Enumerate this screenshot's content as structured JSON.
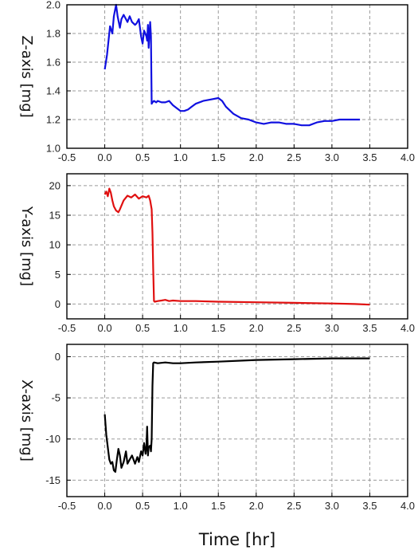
{
  "chart_data": [
    {
      "type": "line",
      "ylabel": "Z-axis [mg]",
      "xlim": [
        -0.5,
        4.0
      ],
      "ylim": [
        1.0,
        2.0
      ],
      "xticks": [
        "-0.5",
        "0.0",
        "0.5",
        "1.0",
        "1.5",
        "2.0",
        "2.5",
        "3.0",
        "3.5",
        "4.0"
      ],
      "yticks": [
        "1.0",
        "1.2",
        "1.4",
        "1.6",
        "1.8",
        "2.0"
      ],
      "grid": true,
      "color": "#1010e0",
      "series": [
        {
          "x": [
            0.0,
            0.03,
            0.05,
            0.07,
            0.1,
            0.12,
            0.15,
            0.17,
            0.2,
            0.22,
            0.25,
            0.28,
            0.3,
            0.33,
            0.36,
            0.4,
            0.42,
            0.45,
            0.48,
            0.5,
            0.52,
            0.55,
            0.56,
            0.57,
            0.58,
            0.6,
            0.61,
            0.62,
            0.63,
            0.65,
            0.68,
            0.7,
            0.75,
            0.8,
            0.85,
            0.9,
            0.95,
            1.0,
            1.05,
            1.1,
            1.15,
            1.2,
            1.3,
            1.4,
            1.5,
            1.55,
            1.6,
            1.7,
            1.8,
            1.9,
            2.0,
            2.1,
            2.2,
            2.3,
            2.4,
            2.5,
            2.6,
            2.7,
            2.8,
            2.9,
            3.0,
            3.1,
            3.2,
            3.3,
            3.37
          ],
          "y": [
            1.55,
            1.65,
            1.75,
            1.85,
            1.8,
            1.92,
            2.0,
            1.92,
            1.84,
            1.9,
            1.93,
            1.9,
            1.88,
            1.92,
            1.88,
            1.86,
            1.87,
            1.9,
            1.78,
            1.73,
            1.82,
            1.78,
            1.75,
            1.86,
            1.7,
            1.88,
            1.78,
            1.31,
            1.32,
            1.33,
            1.32,
            1.33,
            1.32,
            1.32,
            1.33,
            1.3,
            1.28,
            1.26,
            1.26,
            1.27,
            1.29,
            1.31,
            1.33,
            1.34,
            1.35,
            1.33,
            1.29,
            1.24,
            1.21,
            1.2,
            1.18,
            1.17,
            1.18,
            1.18,
            1.17,
            1.17,
            1.16,
            1.16,
            1.18,
            1.19,
            1.19,
            1.2,
            1.2,
            1.2,
            1.2
          ]
        }
      ]
    },
    {
      "type": "line",
      "ylabel": "Y-axis [mg]",
      "xlim": [
        -0.5,
        4.0
      ],
      "ylim": [
        -2.5,
        22.0
      ],
      "xticks": [
        "-0.5",
        "0.0",
        "0.5",
        "1.0",
        "1.5",
        "2.0",
        "2.5",
        "3.0",
        "3.5",
        "4.0"
      ],
      "yticks": [
        "0",
        "5",
        "10",
        "15",
        "20"
      ],
      "grid": true,
      "color": "#e01010",
      "series": [
        {
          "x": [
            0.0,
            0.02,
            0.04,
            0.06,
            0.08,
            0.1,
            0.12,
            0.15,
            0.18,
            0.2,
            0.25,
            0.3,
            0.35,
            0.4,
            0.45,
            0.5,
            0.55,
            0.58,
            0.6,
            0.62,
            0.63,
            0.64,
            0.65,
            0.66,
            0.7,
            0.75,
            0.8,
            0.85,
            0.9,
            1.0,
            1.2,
            1.5,
            2.0,
            2.5,
            3.0,
            3.3,
            3.5
          ],
          "y": [
            18.5,
            19.0,
            18.2,
            19.5,
            18.8,
            17.5,
            16.5,
            15.8,
            15.5,
            16.0,
            17.5,
            18.3,
            18.0,
            18.5,
            17.8,
            18.2,
            18.0,
            18.3,
            17.5,
            16.0,
            12.0,
            6.0,
            0.5,
            0.4,
            0.5,
            0.6,
            0.7,
            0.5,
            0.6,
            0.5,
            0.5,
            0.4,
            0.3,
            0.2,
            0.1,
            0.0,
            -0.1
          ]
        }
      ]
    },
    {
      "type": "line",
      "ylabel": "X-axis [mg]",
      "xlabel": "Time [hr]",
      "xlim": [
        -0.5,
        4.0
      ],
      "ylim": [
        -17.0,
        1.5
      ],
      "xticks": [
        "-0.5",
        "0.0",
        "0.5",
        "1.0",
        "1.5",
        "2.0",
        "2.5",
        "3.0",
        "3.5",
        "4.0"
      ],
      "yticks": [
        "0",
        "-5",
        "-10",
        "-15"
      ],
      "grid": true,
      "color": "#000000",
      "series": [
        {
          "x": [
            0.0,
            0.02,
            0.04,
            0.06,
            0.08,
            0.1,
            0.12,
            0.14,
            0.16,
            0.18,
            0.2,
            0.22,
            0.25,
            0.28,
            0.3,
            0.33,
            0.36,
            0.4,
            0.43,
            0.45,
            0.48,
            0.5,
            0.52,
            0.54,
            0.55,
            0.56,
            0.57,
            0.58,
            0.6,
            0.61,
            0.62,
            0.63,
            0.64,
            0.65,
            0.7,
            0.8,
            0.9,
            1.0,
            1.2,
            1.5,
            2.0,
            2.5,
            3.0,
            3.5
          ],
          "y": [
            -7.0,
            -9.5,
            -11.0,
            -12.5,
            -13.0,
            -12.8,
            -13.8,
            -14.0,
            -12.5,
            -11.2,
            -12.0,
            -13.5,
            -12.8,
            -11.5,
            -13.0,
            -12.5,
            -12.0,
            -13.0,
            -12.2,
            -12.8,
            -11.5,
            -12.0,
            -10.5,
            -11.8,
            -11.0,
            -8.5,
            -12.0,
            -11.0,
            -10.8,
            -11.5,
            -10.0,
            -3.5,
            -0.8,
            -0.7,
            -0.8,
            -0.7,
            -0.8,
            -0.8,
            -0.7,
            -0.6,
            -0.4,
            -0.3,
            -0.2,
            -0.2
          ]
        }
      ]
    }
  ]
}
